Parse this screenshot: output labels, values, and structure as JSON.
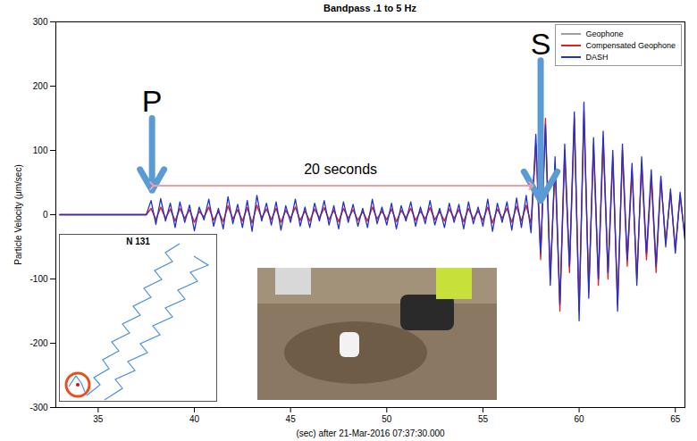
{
  "chart_data": {
    "type": "line",
    "title": "Bandpass .1 to 5 Hz",
    "x_label": "(sec) after 21-Mar-2016 07:37:30.000",
    "y_label": "Particle Velocity (μm/sec)",
    "xlim": [
      32.8,
      65.5
    ],
    "ylim": [
      -300,
      300
    ],
    "xticks": [
      35,
      40,
      45,
      50,
      55,
      60,
      65
    ],
    "yticks": [
      -300,
      -200,
      -100,
      0,
      100,
      200,
      300
    ],
    "grid": false,
    "legend": "top-right",
    "x": [
      33,
      33.25,
      33.5,
      33.75,
      34,
      34.25,
      34.5,
      34.75,
      35,
      35.25,
      35.5,
      35.75,
      36,
      36.25,
      36.5,
      36.75,
      37,
      37.25,
      37.5,
      37.75,
      38,
      38.25,
      38.5,
      38.75,
      39,
      39.25,
      39.5,
      39.75,
      40,
      40.25,
      40.5,
      40.75,
      41,
      41.25,
      41.5,
      41.75,
      42,
      42.25,
      42.5,
      42.75,
      43,
      43.25,
      43.5,
      43.75,
      44,
      44.25,
      44.5,
      44.75,
      45,
      45.25,
      45.5,
      45.75,
      46,
      46.25,
      46.5,
      46.75,
      47,
      47.25,
      47.5,
      47.75,
      48,
      48.25,
      48.5,
      48.75,
      49,
      49.25,
      49.5,
      49.75,
      50,
      50.25,
      50.5,
      50.75,
      51,
      51.25,
      51.5,
      51.75,
      52,
      52.25,
      52.5,
      52.75,
      53,
      53.25,
      53.5,
      53.75,
      54,
      54.25,
      54.5,
      54.75,
      55,
      55.25,
      55.5,
      55.75,
      56,
      56.25,
      56.5,
      56.75,
      57,
      57.25,
      57.5,
      57.75,
      58,
      58.25,
      58.5,
      58.75,
      59,
      59.25,
      59.5,
      59.75,
      60,
      60.25,
      60.5,
      60.75,
      61,
      61.25,
      61.5,
      61.75,
      62,
      62.25,
      62.5,
      62.75,
      63,
      63.25,
      63.5,
      63.75,
      64,
      64.25,
      64.5,
      64.75,
      65,
      65.25,
      65.5
    ],
    "series": [
      {
        "name": "Geophone",
        "color": "#a0a0a0",
        "values": [
          0,
          0,
          0,
          0,
          0,
          0,
          0,
          0,
          0,
          0,
          0,
          0,
          0,
          0,
          0,
          0,
          0,
          0,
          0,
          9,
          -7,
          11,
          -5,
          8,
          -9,
          9,
          -5,
          7,
          -11,
          5,
          -4,
          11,
          -8,
          5,
          -10,
          12,
          -6,
          7,
          -9,
          10,
          -12,
          13,
          -5,
          8,
          -7,
          9,
          -11,
          6,
          -5,
          11,
          -8,
          5,
          -9,
          8,
          -5,
          10,
          -7,
          6,
          -10,
          9,
          -5,
          7,
          -8,
          5,
          -9,
          11,
          -6,
          5,
          -7,
          8,
          -10,
          6,
          -5,
          9,
          -8,
          5,
          -6,
          10,
          -7,
          5,
          -9,
          8,
          -5,
          7,
          -10,
          9,
          -6,
          5,
          -8,
          11,
          -12,
          8,
          -5,
          9,
          -11,
          12,
          -9,
          13,
          -12,
          100,
          -65,
          135,
          -90,
          72,
          -135,
          90,
          -80,
          135,
          -135,
          145,
          -110,
          100,
          -100,
          110,
          -90,
          80,
          -125,
          90,
          -72,
          63,
          -90,
          72,
          -63,
          54,
          -80,
          50,
          -40,
          32,
          -50,
          27,
          -32
        ]
      },
      {
        "name": "Compensated Geophone",
        "color": "#e3211c",
        "values": [
          0,
          0,
          0,
          0,
          0,
          0,
          0,
          0,
          0,
          0,
          0,
          0,
          0,
          0,
          0,
          0,
          0,
          0,
          0,
          10,
          -8,
          12,
          -6,
          9,
          -10,
          10,
          -6,
          8,
          -12,
          6,
          -4,
          12,
          -9,
          5,
          -11,
          14,
          -7,
          8,
          -10,
          11,
          -13,
          15,
          -5,
          9,
          -8,
          10,
          -12,
          7,
          -6,
          12,
          -9,
          6,
          -10,
          9,
          -5,
          11,
          -8,
          7,
          -11,
          10,
          -6,
          8,
          -9,
          5,
          -10,
          12,
          -7,
          6,
          -8,
          9,
          -11,
          7,
          -5,
          10,
          -9,
          6,
          -7,
          11,
          -8,
          5,
          -10,
          9,
          -6,
          8,
          -11,
          10,
          -7,
          6,
          -9,
          12,
          -13,
          9,
          -6,
          10,
          -12,
          13,
          -10,
          15,
          -14,
          110,
          -70,
          150,
          -100,
          80,
          -150,
          100,
          -90,
          150,
          -150,
          160,
          -120,
          110,
          -110,
          120,
          -100,
          90,
          -140,
          100,
          -80,
          70,
          -100,
          80,
          -70,
          60,
          -90,
          55,
          -45,
          35,
          -55,
          30,
          -35
        ]
      },
      {
        "name": "DASH",
        "color": "#2230d0",
        "values": [
          0,
          0,
          0,
          0,
          0,
          0,
          0,
          0,
          0,
          0,
          0,
          0,
          0,
          0,
          0,
          0,
          0,
          0,
          0,
          22,
          -15,
          25,
          -10,
          18,
          -20,
          20,
          -12,
          15,
          -25,
          12,
          -8,
          24,
          -18,
          10,
          -22,
          28,
          -14,
          16,
          -20,
          22,
          -26,
          30,
          -10,
          18,
          -16,
          20,
          -24,
          14,
          -12,
          24,
          -18,
          12,
          -20,
          18,
          -10,
          22,
          -16,
          14,
          -22,
          20,
          -12,
          16,
          -18,
          10,
          -20,
          24,
          -14,
          12,
          -16,
          18,
          -22,
          14,
          -10,
          20,
          -18,
          12,
          -14,
          22,
          -16,
          10,
          -20,
          18,
          -12,
          16,
          -22,
          20,
          -14,
          12,
          -18,
          24,
          -26,
          18,
          -12,
          20,
          -24,
          26,
          -20,
          30,
          -28,
          125,
          -60,
          140,
          -110,
          90,
          -140,
          110,
          -80,
          160,
          -165,
          175,
          -130,
          120,
          -100,
          130,
          -90,
          100,
          -150,
          110,
          -70,
          80,
          -110,
          90,
          -60,
          70,
          -80,
          60,
          -50,
          40,
          -60,
          35,
          -40
        ]
      }
    ],
    "annotations": [
      {
        "text": "P",
        "x": 37.8,
        "y": 175,
        "arrow_from": 150,
        "arrow_to": 38
      },
      {
        "text": "S",
        "x": 58,
        "y": 265,
        "arrow_from": 240,
        "arrow_to": 22
      },
      {
        "text": "20 seconds",
        "x": 47.6,
        "y": 70,
        "span_x": [
          37.8,
          57.5
        ],
        "span_y": 45
      }
    ],
    "inset_label": "N 131"
  }
}
